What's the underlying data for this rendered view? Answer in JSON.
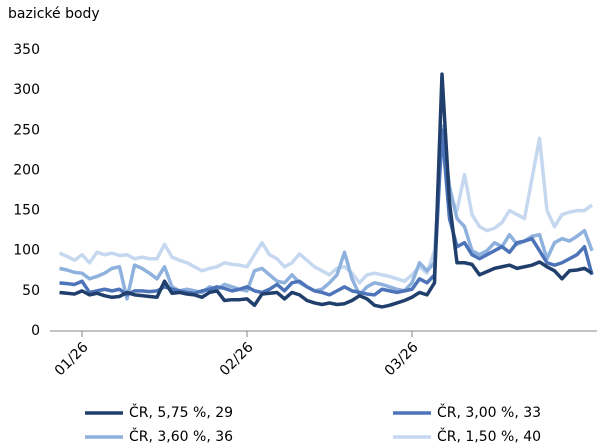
{
  "chart_data": {
    "type": "line",
    "y_label": "bazické body",
    "categories": [
      null,
      null,
      null,
      "01/26",
      null,
      null,
      null,
      null,
      null,
      null,
      null,
      null,
      null,
      null,
      null,
      null,
      null,
      null,
      null,
      null,
      null,
      null,
      null,
      null,
      null,
      "02/26",
      null,
      null,
      null,
      null,
      null,
      null,
      null,
      null,
      null,
      null,
      null,
      null,
      null,
      null,
      null,
      null,
      null,
      null,
      null,
      null,
      null,
      "03/26",
      null,
      null,
      null,
      null,
      null,
      null,
      null,
      null,
      null,
      null,
      null,
      null,
      null,
      null,
      null,
      null,
      null,
      null,
      null,
      null,
      null,
      null,
      null,
      null
    ],
    "ylim": [
      0,
      350
    ],
    "yticks": [
      0,
      50,
      100,
      150,
      200,
      250,
      300,
      350
    ],
    "series": [
      {
        "name": "ČR, 5,75 %, 29",
        "color": "#203f6c",
        "values": [
          48,
          47,
          46,
          50,
          45,
          47,
          44,
          42,
          43,
          48,
          45,
          44,
          43,
          42,
          62,
          47,
          48,
          46,
          45,
          42,
          48,
          50,
          38,
          39,
          39,
          40,
          32,
          46,
          47,
          48,
          40,
          48,
          45,
          38,
          35,
          33,
          35,
          33,
          34,
          38,
          44,
          40,
          32,
          30,
          32,
          35,
          38,
          42,
          48,
          45,
          60,
          320,
          160,
          85,
          85,
          83,
          70,
          74,
          78,
          80,
          82,
          78,
          80,
          82,
          86,
          80,
          75,
          65,
          75,
          76,
          78,
          72
        ]
      },
      {
        "name": "ČR, 3,00 %, 33",
        "color": "#4d74b8",
        "values": [
          60,
          59,
          58,
          62,
          48,
          50,
          52,
          50,
          52,
          45,
          50,
          50,
          49,
          50,
          55,
          52,
          50,
          48,
          47,
          50,
          52,
          55,
          53,
          50,
          52,
          55,
          50,
          48,
          52,
          58,
          50,
          60,
          62,
          55,
          50,
          48,
          45,
          50,
          55,
          50,
          48,
          46,
          45,
          52,
          50,
          48,
          50,
          52,
          65,
          60,
          70,
          250,
          140,
          105,
          110,
          95,
          90,
          95,
          100,
          105,
          98,
          110,
          112,
          115,
          100,
          85,
          82,
          85,
          90,
          95,
          105,
          70
        ]
      },
      {
        "name": "ČR, 3,60 %, 36",
        "color": "#8eb1dd",
        "values": [
          78,
          76,
          73,
          72,
          65,
          68,
          72,
          78,
          80,
          40,
          82,
          78,
          72,
          65,
          80,
          55,
          50,
          52,
          50,
          48,
          55,
          52,
          58,
          55,
          52,
          50,
          75,
          78,
          70,
          62,
          60,
          70,
          60,
          55,
          50,
          52,
          60,
          70,
          98,
          65,
          45,
          55,
          60,
          58,
          55,
          52,
          50,
          60,
          85,
          75,
          85,
          255,
          180,
          140,
          130,
          100,
          95,
          100,
          110,
          105,
          120,
          108,
          112,
          118,
          120,
          90,
          110,
          115,
          112,
          118,
          125,
          100
        ]
      },
      {
        "name": "ČR, 1,50 %, 40",
        "color": "#c6d8ef",
        "values": [
          97,
          93,
          88,
          95,
          85,
          98,
          95,
          97,
          94,
          95,
          90,
          92,
          90,
          90,
          108,
          92,
          88,
          85,
          80,
          75,
          78,
          80,
          85,
          83,
          82,
          80,
          95,
          110,
          95,
          90,
          80,
          85,
          96,
          88,
          80,
          75,
          70,
          78,
          80,
          72,
          60,
          70,
          72,
          70,
          68,
          65,
          62,
          70,
          80,
          72,
          100,
          232,
          170,
          150,
          195,
          145,
          130,
          125,
          128,
          135,
          150,
          145,
          140,
          190,
          240,
          150,
          130,
          145,
          148,
          150,
          150,
          157
        ]
      }
    ]
  }
}
